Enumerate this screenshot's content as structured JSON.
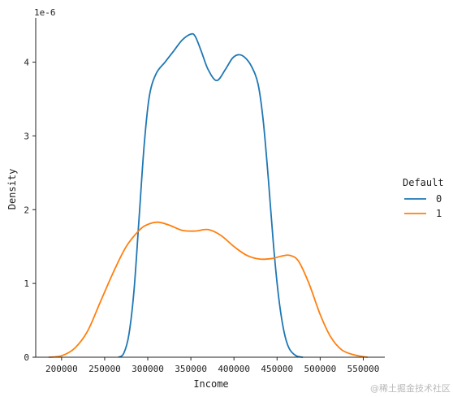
{
  "chart_data": {
    "type": "line",
    "title": "",
    "xlabel": "Income",
    "ylabel": "Density",
    "y_scale_label": "1e-6",
    "xlim": [
      170000,
      575000
    ],
    "ylim": [
      0,
      4.6
    ],
    "x_ticks": [
      200000,
      250000,
      300000,
      350000,
      400000,
      450000,
      500000,
      550000
    ],
    "y_ticks": [
      0,
      1,
      2,
      3,
      4
    ],
    "grid": false,
    "legend": {
      "title": "Default",
      "placement": "right"
    },
    "series": [
      {
        "name": "0",
        "color": "#1f77b4",
        "points": [
          [
            266000,
            0.0
          ],
          [
            272000,
            0.05
          ],
          [
            278000,
            0.3
          ],
          [
            284000,
            0.9
          ],
          [
            290000,
            1.9
          ],
          [
            296000,
            2.9
          ],
          [
            302000,
            3.55
          ],
          [
            310000,
            3.85
          ],
          [
            320000,
            4.0
          ],
          [
            330000,
            4.15
          ],
          [
            340000,
            4.3
          ],
          [
            350000,
            4.38
          ],
          [
            355000,
            4.35
          ],
          [
            362000,
            4.15
          ],
          [
            370000,
            3.9
          ],
          [
            380000,
            3.75
          ],
          [
            390000,
            3.9
          ],
          [
            398000,
            4.05
          ],
          [
            405000,
            4.1
          ],
          [
            412000,
            4.07
          ],
          [
            420000,
            3.95
          ],
          [
            428000,
            3.7
          ],
          [
            434000,
            3.2
          ],
          [
            440000,
            2.4
          ],
          [
            446000,
            1.5
          ],
          [
            452000,
            0.8
          ],
          [
            458000,
            0.35
          ],
          [
            464000,
            0.12
          ],
          [
            472000,
            0.02
          ],
          [
            480000,
            0.0
          ]
        ]
      },
      {
        "name": "1",
        "color": "#ff7f0e",
        "points": [
          [
            185000,
            0.0
          ],
          [
            200000,
            0.02
          ],
          [
            215000,
            0.12
          ],
          [
            230000,
            0.35
          ],
          [
            245000,
            0.75
          ],
          [
            260000,
            1.15
          ],
          [
            275000,
            1.5
          ],
          [
            290000,
            1.72
          ],
          [
            300000,
            1.8
          ],
          [
            312000,
            1.83
          ],
          [
            325000,
            1.79
          ],
          [
            340000,
            1.72
          ],
          [
            355000,
            1.71
          ],
          [
            370000,
            1.73
          ],
          [
            385000,
            1.65
          ],
          [
            400000,
            1.5
          ],
          [
            415000,
            1.38
          ],
          [
            430000,
            1.33
          ],
          [
            445000,
            1.34
          ],
          [
            455000,
            1.37
          ],
          [
            465000,
            1.38
          ],
          [
            475000,
            1.3
          ],
          [
            487000,
            1.0
          ],
          [
            500000,
            0.58
          ],
          [
            512000,
            0.28
          ],
          [
            525000,
            0.1
          ],
          [
            540000,
            0.03
          ],
          [
            555000,
            0.0
          ]
        ]
      }
    ]
  },
  "watermark": "@稀土掘金技术社区"
}
